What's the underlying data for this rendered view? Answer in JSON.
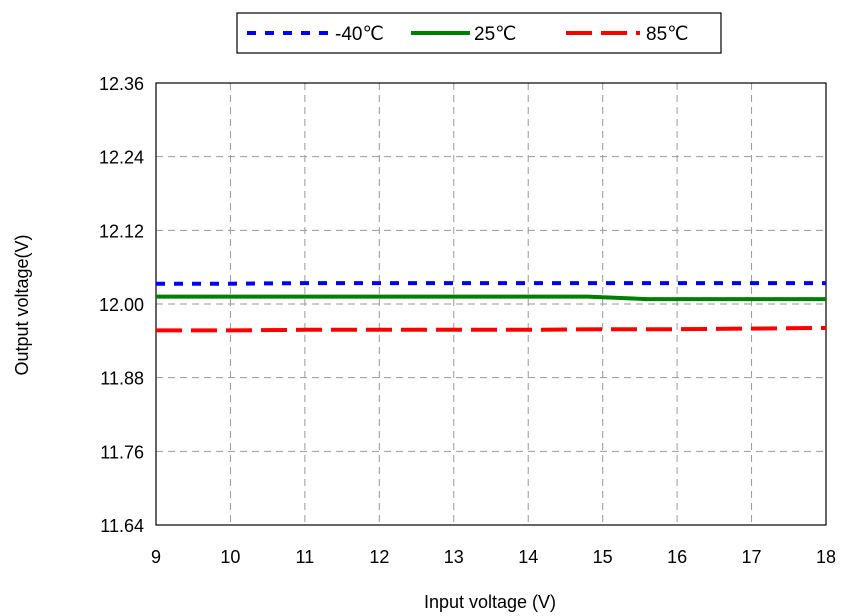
{
  "chart_data": {
    "type": "line",
    "title": "",
    "xlabel": "Input voltage (V)",
    "ylabel": "Output voltage(V)",
    "xlim": [
      9,
      18
    ],
    "ylim": [
      11.64,
      12.36
    ],
    "xticks": [
      9,
      10,
      11,
      12,
      13,
      14,
      15,
      16,
      17,
      18
    ],
    "yticks": [
      11.64,
      11.76,
      11.88,
      12.0,
      12.12,
      12.24,
      12.36
    ],
    "ytick_labels": [
      "11.64",
      "11.76",
      "11.88",
      "12.00",
      "12.12",
      "12.24",
      "12.36"
    ],
    "grid": true,
    "legend_position": "top-center",
    "series": [
      {
        "name": "-40℃",
        "color": "#0000ff",
        "style": "dotted",
        "x": [
          9,
          10,
          11,
          12,
          13,
          14,
          15,
          16,
          17,
          18
        ],
        "y": [
          12.033,
          12.033,
          12.034,
          12.034,
          12.034,
          12.034,
          12.034,
          12.034,
          12.034,
          12.034
        ]
      },
      {
        "name": "25℃",
        "color": "#008000",
        "style": "solid",
        "x": [
          9,
          10,
          11,
          12,
          13,
          14,
          14.8,
          15.6,
          16,
          17,
          18
        ],
        "y": [
          12.012,
          12.012,
          12.012,
          12.012,
          12.012,
          12.012,
          12.012,
          12.008,
          12.008,
          12.008,
          12.008
        ]
      },
      {
        "name": "85℃",
        "color": "#ff0000",
        "style": "dashed",
        "x": [
          9,
          10,
          11,
          12,
          13,
          14,
          15,
          16,
          17,
          18
        ],
        "y": [
          11.957,
          11.957,
          11.958,
          11.958,
          11.958,
          11.958,
          11.959,
          11.959,
          11.96,
          11.961
        ]
      }
    ]
  }
}
